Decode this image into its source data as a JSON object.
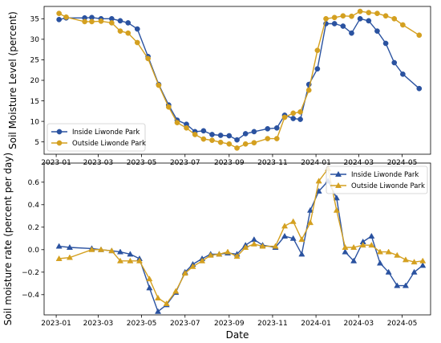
{
  "chart_data": [
    {
      "type": "line",
      "title": "",
      "xlabel": "",
      "ylabel": "Soil Moisture Level (percent)",
      "x_ticks": [
        "2023-01",
        "2023-03",
        "2023-05",
        "2023-07",
        "2023-09",
        "2023-11",
        "2024-01",
        "2024-03",
        "2024-05"
      ],
      "y_ticks": [
        "5",
        "10",
        "15",
        "20",
        "25",
        "30",
        "35"
      ],
      "ylim": [
        2,
        38
      ],
      "xlim": [
        "2022-12-15",
        "2024-06-10"
      ],
      "legend_position": "lower-left",
      "grid": false,
      "series": [
        {
          "name": "Inside Liwonde Park",
          "color": "#2a52a0",
          "marker": "circle",
          "points": [
            [
              "2023-01-05",
              34.8
            ],
            [
              "2023-01-15",
              35.2
            ],
            [
              "2023-02-10",
              35.2
            ],
            [
              "2023-02-20",
              35.3
            ],
            [
              "2023-03-05",
              35.0
            ],
            [
              "2023-03-20",
              35.0
            ],
            [
              "2023-04-01",
              34.5
            ],
            [
              "2023-04-12",
              34.0
            ],
            [
              "2023-04-25",
              32.5
            ],
            [
              "2023-05-10",
              25.8
            ],
            [
              "2023-05-25",
              19.0
            ],
            [
              "2023-06-08",
              14.0
            ],
            [
              "2023-06-20",
              10.3
            ],
            [
              "2023-07-03",
              9.3
            ],
            [
              "2023-07-15",
              7.5
            ],
            [
              "2023-07-27",
              7.7
            ],
            [
              "2023-08-08",
              6.8
            ],
            [
              "2023-08-20",
              6.6
            ],
            [
              "2023-09-01",
              6.5
            ],
            [
              "2023-09-12",
              5.5
            ],
            [
              "2023-09-24",
              7.0
            ],
            [
              "2023-10-06",
              7.5
            ],
            [
              "2023-10-25",
              8.2
            ],
            [
              "2023-11-07",
              8.4
            ],
            [
              "2023-11-18",
              11.5
            ],
            [
              "2023-11-30",
              10.7
            ],
            [
              "2023-12-10",
              10.5
            ],
            [
              "2023-12-22",
              19.0
            ],
            [
              "2024-01-03",
              22.8
            ],
            [
              "2024-01-15",
              33.8
            ],
            [
              "2024-01-27",
              33.8
            ],
            [
              "2024-02-08",
              33.2
            ],
            [
              "2024-02-20",
              31.5
            ],
            [
              "2024-03-03",
              35.0
            ],
            [
              "2024-03-15",
              34.5
            ],
            [
              "2024-03-27",
              32.0
            ],
            [
              "2024-04-08",
              29.0
            ],
            [
              "2024-04-20",
              24.3
            ],
            [
              "2024-05-02",
              21.5
            ],
            [
              "2024-05-25",
              18.0
            ]
          ]
        },
        {
          "name": "Outside Liwonde Park",
          "color": "#d4a020",
          "marker": "circle",
          "points": [
            [
              "2023-01-05",
              36.3
            ],
            [
              "2023-01-15",
              35.4
            ],
            [
              "2023-02-10",
              34.3
            ],
            [
              "2023-02-20",
              34.3
            ],
            [
              "2023-03-05",
              34.4
            ],
            [
              "2023-03-20",
              34.0
            ],
            [
              "2023-04-01",
              32.0
            ],
            [
              "2023-04-12",
              31.5
            ],
            [
              "2023-04-25",
              29.2
            ],
            [
              "2023-05-10",
              25.3
            ],
            [
              "2023-05-25",
              18.8
            ],
            [
              "2023-06-08",
              13.5
            ],
            [
              "2023-06-20",
              9.7
            ],
            [
              "2023-07-03",
              8.4
            ],
            [
              "2023-07-15",
              6.8
            ],
            [
              "2023-07-27",
              5.7
            ],
            [
              "2023-08-08",
              5.4
            ],
            [
              "2023-08-20",
              4.9
            ],
            [
              "2023-09-01",
              4.5
            ],
            [
              "2023-09-12",
              3.5
            ],
            [
              "2023-09-24",
              4.5
            ],
            [
              "2023-10-06",
              4.8
            ],
            [
              "2023-10-25",
              5.8
            ],
            [
              "2023-11-07",
              5.8
            ],
            [
              "2023-11-18",
              11.0
            ],
            [
              "2023-11-30",
              12.0
            ],
            [
              "2023-12-10",
              12.3
            ],
            [
              "2023-12-22",
              17.6
            ],
            [
              "2024-01-03",
              27.3
            ],
            [
              "2024-01-15",
              35.0
            ],
            [
              "2024-01-27",
              35.3
            ],
            [
              "2024-02-08",
              35.7
            ],
            [
              "2024-02-20",
              35.6
            ],
            [
              "2024-03-03",
              36.8
            ],
            [
              "2024-03-15",
              36.5
            ],
            [
              "2024-03-27",
              36.3
            ],
            [
              "2024-04-08",
              35.7
            ],
            [
              "2024-04-20",
              35.0
            ],
            [
              "2024-05-02",
              33.5
            ],
            [
              "2024-05-25",
              31.0
            ]
          ]
        }
      ]
    },
    {
      "type": "line",
      "title": "",
      "xlabel": "Date",
      "ylabel": "Soil moisture rate (percent per day)",
      "x_ticks": [
        "2023-01",
        "2023-03",
        "2023-05",
        "2023-07",
        "2023-09",
        "2023-11",
        "2024-01",
        "2024-03",
        "2024-05"
      ],
      "y_ticks": [
        "−0.4",
        "−0.2",
        "0.0",
        "0.2",
        "0.4",
        "0.6"
      ],
      "ylim": [
        -0.58,
        0.77
      ],
      "xlim": [
        "2022-12-15",
        "2024-06-10"
      ],
      "legend_position": "upper-right",
      "grid": false,
      "series": [
        {
          "name": "Inside Liwonde Park",
          "color": "#2a52a0",
          "marker": "triangle",
          "points": [
            [
              "2023-01-05",
              0.03
            ],
            [
              "2023-01-20",
              0.02
            ],
            [
              "2023-02-20",
              0.01
            ],
            [
              "2023-03-05",
              0.0
            ],
            [
              "2023-03-20",
              -0.01
            ],
            [
              "2023-04-01",
              -0.02
            ],
            [
              "2023-04-15",
              -0.04
            ],
            [
              "2023-04-28",
              -0.08
            ],
            [
              "2023-05-12",
              -0.34
            ],
            [
              "2023-05-24",
              -0.55
            ],
            [
              "2023-06-05",
              -0.49
            ],
            [
              "2023-06-18",
              -0.38
            ],
            [
              "2023-07-01",
              -0.2
            ],
            [
              "2023-07-12",
              -0.13
            ],
            [
              "2023-07-25",
              -0.08
            ],
            [
              "2023-08-06",
              -0.04
            ],
            [
              "2023-08-18",
              -0.04
            ],
            [
              "2023-08-30",
              -0.03
            ],
            [
              "2023-09-12",
              -0.04
            ],
            [
              "2023-09-24",
              0.04
            ],
            [
              "2023-10-06",
              0.09
            ],
            [
              "2023-10-18",
              0.04
            ],
            [
              "2023-11-05",
              0.02
            ],
            [
              "2023-11-18",
              0.12
            ],
            [
              "2023-11-30",
              0.1
            ],
            [
              "2023-12-12",
              -0.04
            ],
            [
              "2023-12-24",
              0.35
            ],
            [
              "2024-01-05",
              0.52
            ],
            [
              "2024-01-18",
              0.61
            ],
            [
              "2024-01-30",
              0.46
            ],
            [
              "2024-02-11",
              -0.02
            ],
            [
              "2024-02-23",
              -0.1
            ],
            [
              "2024-03-07",
              0.07
            ],
            [
              "2024-03-19",
              0.12
            ],
            [
              "2024-03-31",
              -0.12
            ],
            [
              "2024-04-12",
              -0.2
            ],
            [
              "2024-04-24",
              -0.32
            ],
            [
              "2024-05-06",
              -0.32
            ],
            [
              "2024-05-18",
              -0.2
            ],
            [
              "2024-05-30",
              -0.14
            ]
          ]
        },
        {
          "name": "Outside Liwonde Park",
          "color": "#d4a020",
          "marker": "triangle",
          "points": [
            [
              "2023-01-05",
              -0.08
            ],
            [
              "2023-01-20",
              -0.07
            ],
            [
              "2023-02-20",
              0.0
            ],
            [
              "2023-03-05",
              0.0
            ],
            [
              "2023-03-20",
              -0.01
            ],
            [
              "2023-04-01",
              -0.1
            ],
            [
              "2023-04-15",
              -0.1
            ],
            [
              "2023-04-28",
              -0.1
            ],
            [
              "2023-05-12",
              -0.26
            ],
            [
              "2023-05-24",
              -0.43
            ],
            [
              "2023-06-05",
              -0.48
            ],
            [
              "2023-06-18",
              -0.37
            ],
            [
              "2023-07-01",
              -0.21
            ],
            [
              "2023-07-12",
              -0.15
            ],
            [
              "2023-07-25",
              -0.1
            ],
            [
              "2023-08-06",
              -0.05
            ],
            [
              "2023-08-18",
              -0.04
            ],
            [
              "2023-08-30",
              -0.02
            ],
            [
              "2023-09-12",
              -0.06
            ],
            [
              "2023-09-24",
              0.02
            ],
            [
              "2023-10-06",
              0.05
            ],
            [
              "2023-10-18",
              0.03
            ],
            [
              "2023-11-05",
              0.03
            ],
            [
              "2023-11-18",
              0.21
            ],
            [
              "2023-11-30",
              0.25
            ],
            [
              "2023-12-12",
              0.09
            ],
            [
              "2023-12-24",
              0.24
            ],
            [
              "2024-01-05",
              0.61
            ],
            [
              "2024-01-18",
              0.72
            ],
            [
              "2024-01-30",
              0.35
            ],
            [
              "2024-02-11",
              0.02
            ],
            [
              "2024-02-23",
              0.02
            ],
            [
              "2024-03-07",
              0.04
            ],
            [
              "2024-03-19",
              0.04
            ],
            [
              "2024-03-31",
              -0.02
            ],
            [
              "2024-04-12",
              -0.02
            ],
            [
              "2024-04-24",
              -0.05
            ],
            [
              "2024-05-06",
              -0.09
            ],
            [
              "2024-05-18",
              -0.11
            ],
            [
              "2024-05-30",
              -0.1
            ]
          ]
        }
      ]
    }
  ]
}
